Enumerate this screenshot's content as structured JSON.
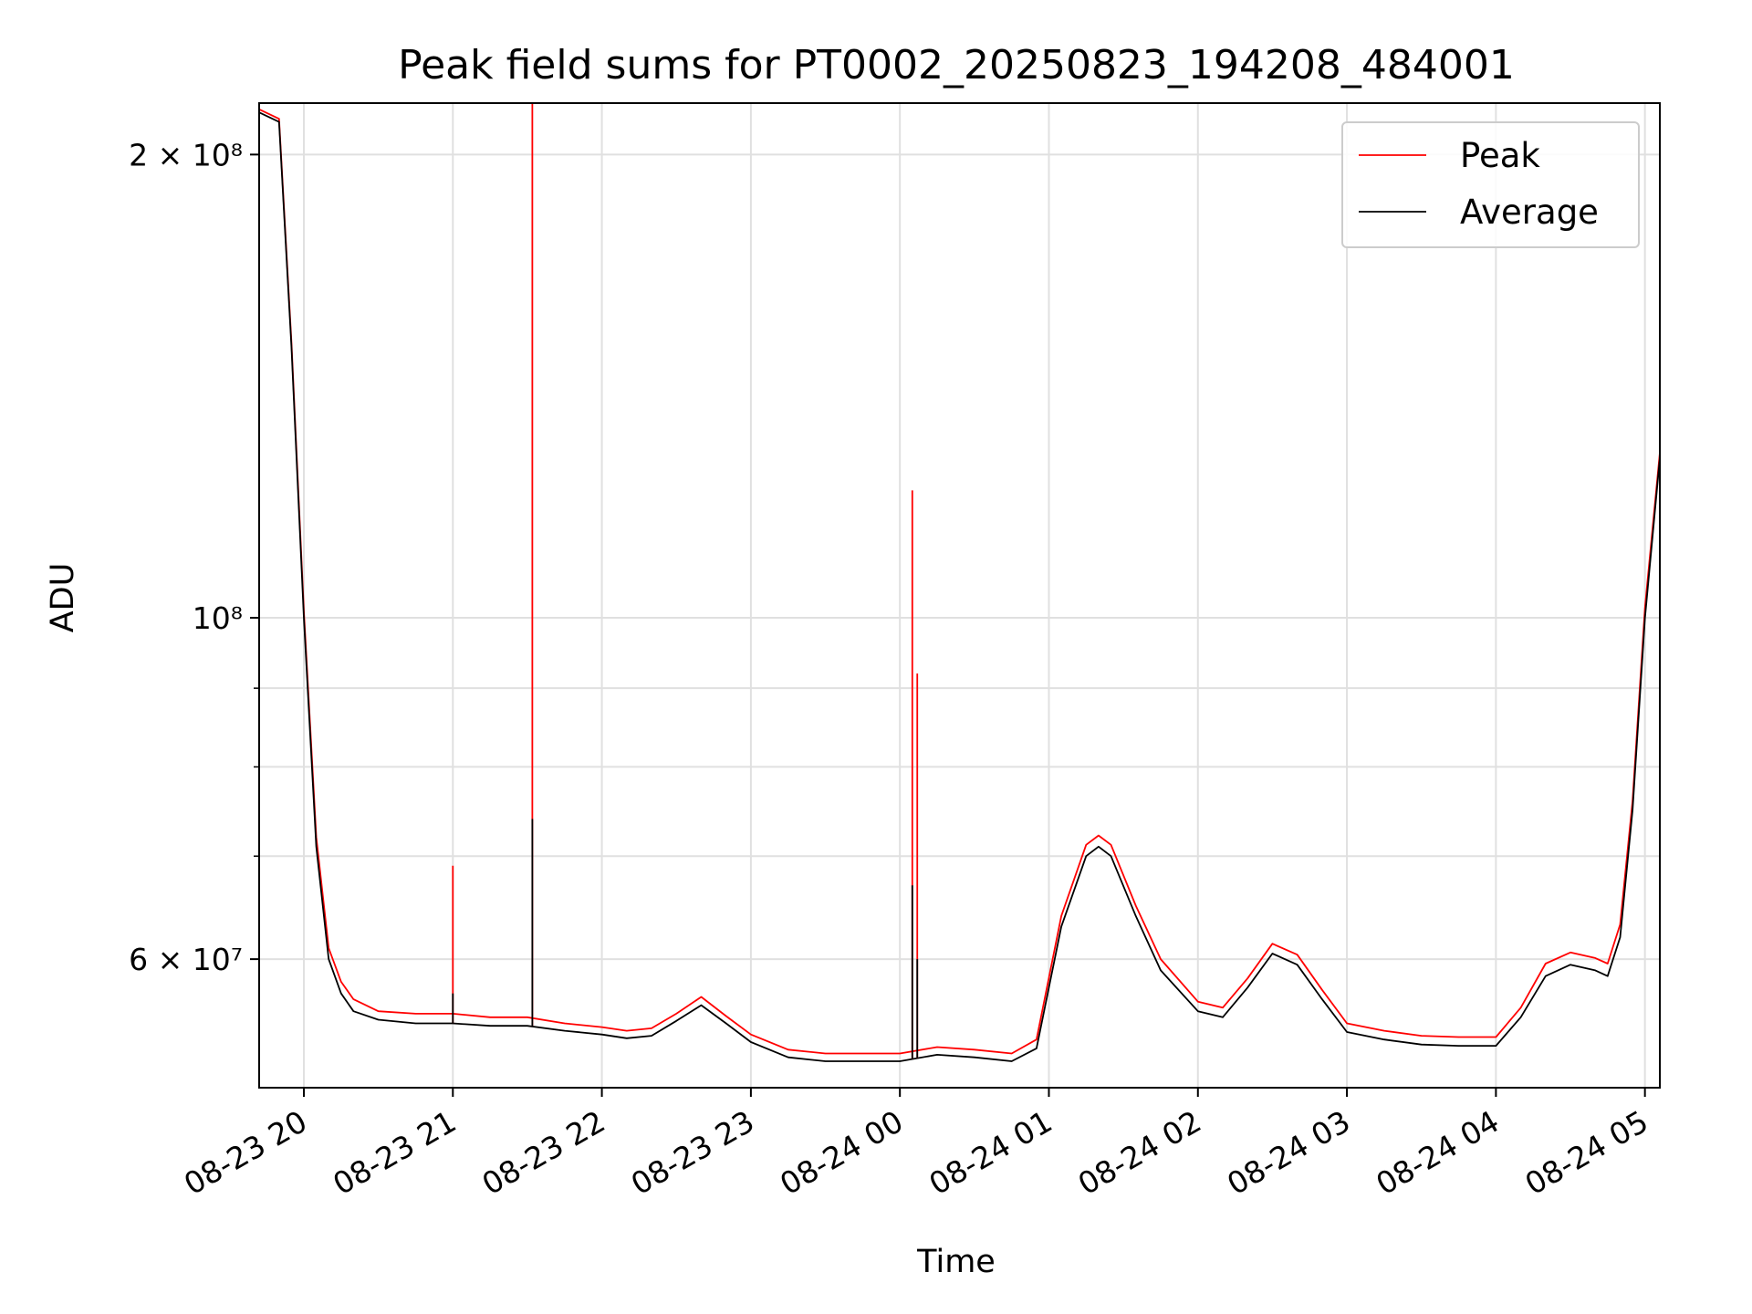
{
  "chart_data": {
    "type": "line",
    "title": "Peak field sums for PT0002_20250823_194208_484001",
    "xlabel": "Time",
    "ylabel": "ADU",
    "y_scale": "log",
    "ylim": [
      49500000,
      216000000
    ],
    "xlim": [
      "08-23 19:42",
      "08-24 05:06"
    ],
    "grid": true,
    "legend_position": "top-right",
    "colors": {
      "Peak": "#ff0000",
      "Average": "#000000"
    },
    "x_tick_labels": [
      "08-23 20",
      "08-23 21",
      "08-23 22",
      "08-23 23",
      "08-24 00",
      "08-24 01",
      "08-24 02",
      "08-24 03",
      "08-24 04",
      "08-24 05"
    ],
    "y_tick_labels": [
      {
        "value": 200000000,
        "text": "2 × 10⁸"
      },
      {
        "value": 100000000,
        "text": "10⁸"
      },
      {
        "value": 60000000,
        "text": "6 × 10⁷"
      }
    ],
    "y_minor_ticks": [
      70000000,
      80000000,
      90000000
    ],
    "x": [
      "08-23 19:42",
      "08-23 19:50",
      "08-23 19:55",
      "08-23 20:00",
      "08-23 20:05",
      "08-23 20:10",
      "08-23 20:15",
      "08-23 20:20",
      "08-23 20:30",
      "08-23 20:45",
      "08-23 21:00",
      "08-23 21:15",
      "08-23 21:30",
      "08-23 21:45",
      "08-23 22:00",
      "08-23 22:10",
      "08-23 22:20",
      "08-23 22:30",
      "08-23 22:40",
      "08-23 22:50",
      "08-23 23:00",
      "08-23 23:15",
      "08-23 23:30",
      "08-23 23:45",
      "08-24 00:00",
      "08-24 00:15",
      "08-24 00:30",
      "08-24 00:45",
      "08-24 00:55",
      "08-24 01:05",
      "08-24 01:15",
      "08-24 01:20",
      "08-24 01:25",
      "08-24 01:35",
      "08-24 01:45",
      "08-24 02:00",
      "08-24 02:10",
      "08-24 02:20",
      "08-24 02:30",
      "08-24 02:40",
      "08-24 02:50",
      "08-24 03:00",
      "08-24 03:15",
      "08-24 03:30",
      "08-24 03:45",
      "08-24 04:00",
      "08-24 04:10",
      "08-24 04:20",
      "08-24 04:30",
      "08-24 04:40",
      "08-24 04:45",
      "08-24 04:50",
      "08-24 04:55",
      "08-24 05:00",
      "08-24 05:06"
    ],
    "series": [
      {
        "name": "Average",
        "values": [
          213000000,
          210000000,
          150000000,
          100000000,
          71000000,
          60000000,
          57000000,
          55500000,
          54800000,
          54500000,
          54500000,
          54300000,
          54300000,
          53900000,
          53600000,
          53300000,
          53500000,
          54700000,
          56000000,
          54500000,
          53000000,
          51800000,
          51500000,
          51500000,
          51500000,
          52000000,
          51800000,
          51500000,
          52500000,
          63000000,
          70000000,
          71000000,
          70000000,
          64000000,
          59000000,
          55500000,
          55000000,
          57500000,
          60500000,
          59500000,
          56500000,
          53800000,
          53200000,
          52800000,
          52700000,
          52700000,
          55000000,
          58500000,
          59500000,
          59000000,
          58500000,
          62000000,
          75000000,
          100000000,
          127000000
        ]
      },
      {
        "name": "Peak",
        "values": [
          214000000,
          211000000,
          151000000,
          101000000,
          72000000,
          61000000,
          58000000,
          56500000,
          55500000,
          55300000,
          55300000,
          55000000,
          55000000,
          54500000,
          54200000,
          53900000,
          54100000,
          55300000,
          56700000,
          55100000,
          53600000,
          52400000,
          52100000,
          52100000,
          52100000,
          52600000,
          52400000,
          52100000,
          53200000,
          64000000,
          71200000,
          72200000,
          71200000,
          65000000,
          60000000,
          56300000,
          55800000,
          58300000,
          61400000,
          60400000,
          57300000,
          54500000,
          53900000,
          53500000,
          53400000,
          53400000,
          55800000,
          59600000,
          60600000,
          60100000,
          59600000,
          63200000,
          76000000,
          101500000,
          128000000
        ]
      }
    ],
    "peak_spikes": [
      {
        "x": "08-23 21:00",
        "peak": 69000000,
        "average": 57000000
      },
      {
        "x": "08-23 21:32",
        "peak": 216000000,
        "average": 74000000
      },
      {
        "x": "08-24 00:05",
        "peak": 121000000,
        "average": 67000000
      },
      {
        "x": "08-24 00:07",
        "peak": 92000000,
        "average": 60000000
      }
    ]
  }
}
